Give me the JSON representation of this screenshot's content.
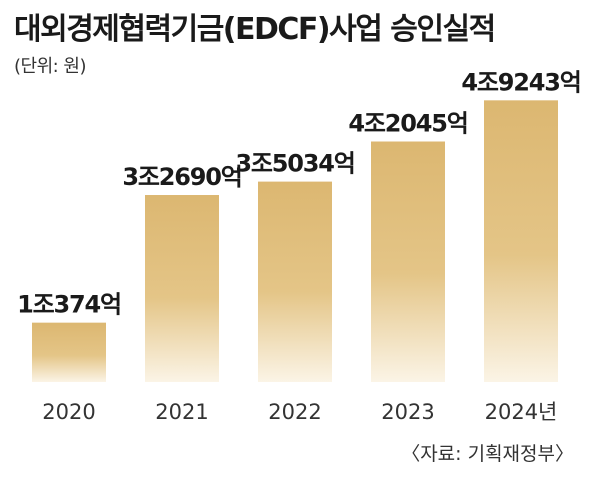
{
  "title": "대외경제협력기금(EDCF)사업 승인실적",
  "unit_note": "(단위: 원)",
  "source": "〈자료: 기획재정부〉",
  "colors": {
    "bar_top": "#dcb771",
    "bar_bottom": "#fbf4e6",
    "text": "#1a1a1a"
  },
  "chart_data": {
    "type": "bar",
    "title": "대외경제협력기금(EDCF)사업 승인실적",
    "ylabel": "",
    "xlabel": "",
    "unit": "원",
    "categories": [
      "2020",
      "2021",
      "2022",
      "2023",
      "2024년"
    ],
    "values": [
      10374,
      32690,
      35034,
      42045,
      49243
    ],
    "value_unit": "억 원",
    "labels": [
      "1조374억",
      "3조2690억",
      "3조5034억",
      "4조2045억",
      "4조9243억"
    ],
    "ylim": [
      0,
      50000
    ],
    "grid": false,
    "legend": "none"
  }
}
